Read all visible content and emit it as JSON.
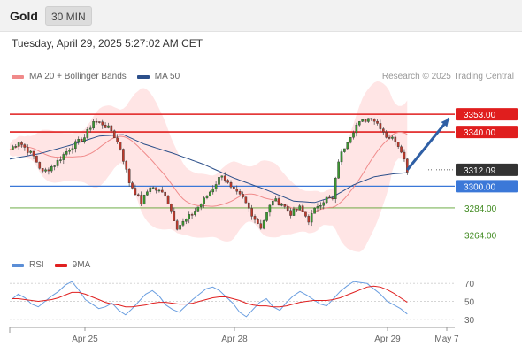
{
  "header": {
    "symbol": "Gold",
    "timeframe": "30 MIN"
  },
  "timestamp": "Tuesday, April 29, 2025 5:27:02 AM CET",
  "legend_main": [
    {
      "label": "MA 20 + Bollinger Bands",
      "color": "#f08a8a"
    },
    {
      "label": "MA 50",
      "color": "#2c4f8a"
    }
  ],
  "legend_rsi": [
    {
      "label": "RSI",
      "color": "#5b8ed6"
    },
    {
      "label": "9MA",
      "color": "#e02020"
    }
  ],
  "credit": "Research © 2025 Trading Central",
  "colors": {
    "resistance": "#e01e1e",
    "support_main": "#3b78d8",
    "support_minor": "#5aa02c",
    "candle_up": "#3a9a2f",
    "candle_down": "#c0392b",
    "band_fill": "#ffdede",
    "ma20": "#f08a8a",
    "ma50": "#2c4f8a",
    "rsi_line": "#6a9ee0",
    "rsi_ma": "#e02020",
    "arrow": "#2f5fa5"
  },
  "chart_data": [
    {
      "type": "candlestick",
      "title": "Gold",
      "timeframe": "30 MIN",
      "ylim": [
        3252,
        3372
      ],
      "x_ticks": [
        "Apr 25",
        "Apr 28",
        "Apr 29",
        "May 7"
      ],
      "levels": [
        {
          "value": 3353.0,
          "label": "3353.00",
          "kind": "resistance"
        },
        {
          "value": 3340.0,
          "label": "3340.00",
          "kind": "resistance"
        },
        {
          "value": 3312.09,
          "label": "3312.09",
          "kind": "current"
        },
        {
          "value": 3300.0,
          "label": "3300.00",
          "kind": "support_main"
        },
        {
          "value": 3284.0,
          "label": "3284.00",
          "kind": "support_minor"
        },
        {
          "value": 3264.0,
          "label": "3264.00",
          "kind": "support_minor"
        }
      ],
      "price_path": [
        [
          0,
          3327
        ],
        [
          3,
          3333
        ],
        [
          8,
          3322
        ],
        [
          11,
          3310
        ],
        [
          15,
          3316
        ],
        [
          20,
          3328
        ],
        [
          25,
          3336
        ],
        [
          28,
          3348
        ],
        [
          31,
          3346
        ],
        [
          34,
          3341
        ],
        [
          37,
          3328
        ],
        [
          40,
          3303
        ],
        [
          44,
          3288
        ],
        [
          47,
          3300
        ],
        [
          50,
          3296
        ],
        [
          52,
          3294
        ],
        [
          56,
          3270
        ],
        [
          59,
          3275
        ],
        [
          62,
          3282
        ],
        [
          65,
          3290
        ],
        [
          68,
          3299
        ],
        [
          71,
          3309
        ],
        [
          74,
          3298
        ],
        [
          78,
          3291
        ],
        [
          82,
          3276
        ],
        [
          84,
          3270
        ],
        [
          86,
          3280
        ],
        [
          88,
          3290
        ],
        [
          91,
          3287
        ],
        [
          94,
          3280
        ],
        [
          97,
          3284
        ],
        [
          100,
          3275
        ],
        [
          103,
          3286
        ],
        [
          106,
          3291
        ],
        [
          108,
          3290
        ],
        [
          110,
          3319
        ],
        [
          113,
          3334
        ],
        [
          116,
          3345
        ],
        [
          119,
          3349
        ],
        [
          121,
          3351
        ],
        [
          124,
          3344
        ],
        [
          126,
          3337
        ],
        [
          129,
          3334
        ],
        [
          131,
          3327
        ],
        [
          133,
          3312
        ]
      ],
      "ma50_path": [
        [
          0,
          3320
        ],
        [
          10,
          3324
        ],
        [
          20,
          3330
        ],
        [
          30,
          3337
        ],
        [
          38,
          3338
        ],
        [
          45,
          3331
        ],
        [
          55,
          3324
        ],
        [
          65,
          3316
        ],
        [
          75,
          3306
        ],
        [
          85,
          3298
        ],
        [
          95,
          3289
        ],
        [
          102,
          3288
        ],
        [
          108,
          3292
        ],
        [
          115,
          3301
        ],
        [
          122,
          3307
        ],
        [
          128,
          3309
        ],
        [
          133,
          3310
        ]
      ],
      "projection": {
        "from": [
          133,
          3312
        ],
        "to": [
          147,
          3350
        ]
      },
      "total_bars": 133
    },
    {
      "type": "line",
      "title": "RSI",
      "ylim": [
        25,
        80
      ],
      "y_ticks": [
        70,
        50,
        30
      ],
      "series": [
        {
          "name": "RSI",
          "values": [
            52,
            58,
            54,
            47,
            44,
            50,
            56,
            61,
            68,
            72,
            63,
            52,
            47,
            42,
            44,
            48,
            40,
            35,
            42,
            50,
            58,
            62,
            56,
            46,
            41,
            38,
            45,
            52,
            58,
            64,
            66,
            62,
            55,
            48,
            38,
            33,
            41,
            49,
            53,
            44,
            40,
            49,
            56,
            61,
            57,
            52,
            47,
            45,
            53,
            61,
            67,
            72,
            71,
            70,
            64,
            58,
            50,
            46,
            42,
            36
          ]
        },
        {
          "name": "9MA",
          "values": [
            53,
            53,
            52,
            51,
            50,
            51,
            52,
            54,
            57,
            60,
            60,
            58,
            55,
            52,
            49,
            47,
            46,
            44,
            44,
            45,
            46,
            48,
            49,
            49,
            48,
            47,
            47,
            48,
            50,
            52,
            54,
            55,
            55,
            53,
            51,
            48,
            46,
            45,
            45,
            44,
            44,
            45,
            47,
            49,
            50,
            51,
            51,
            51,
            52,
            54,
            57,
            60,
            63,
            66,
            67,
            66,
            63,
            59,
            54,
            49
          ]
        }
      ]
    }
  ]
}
